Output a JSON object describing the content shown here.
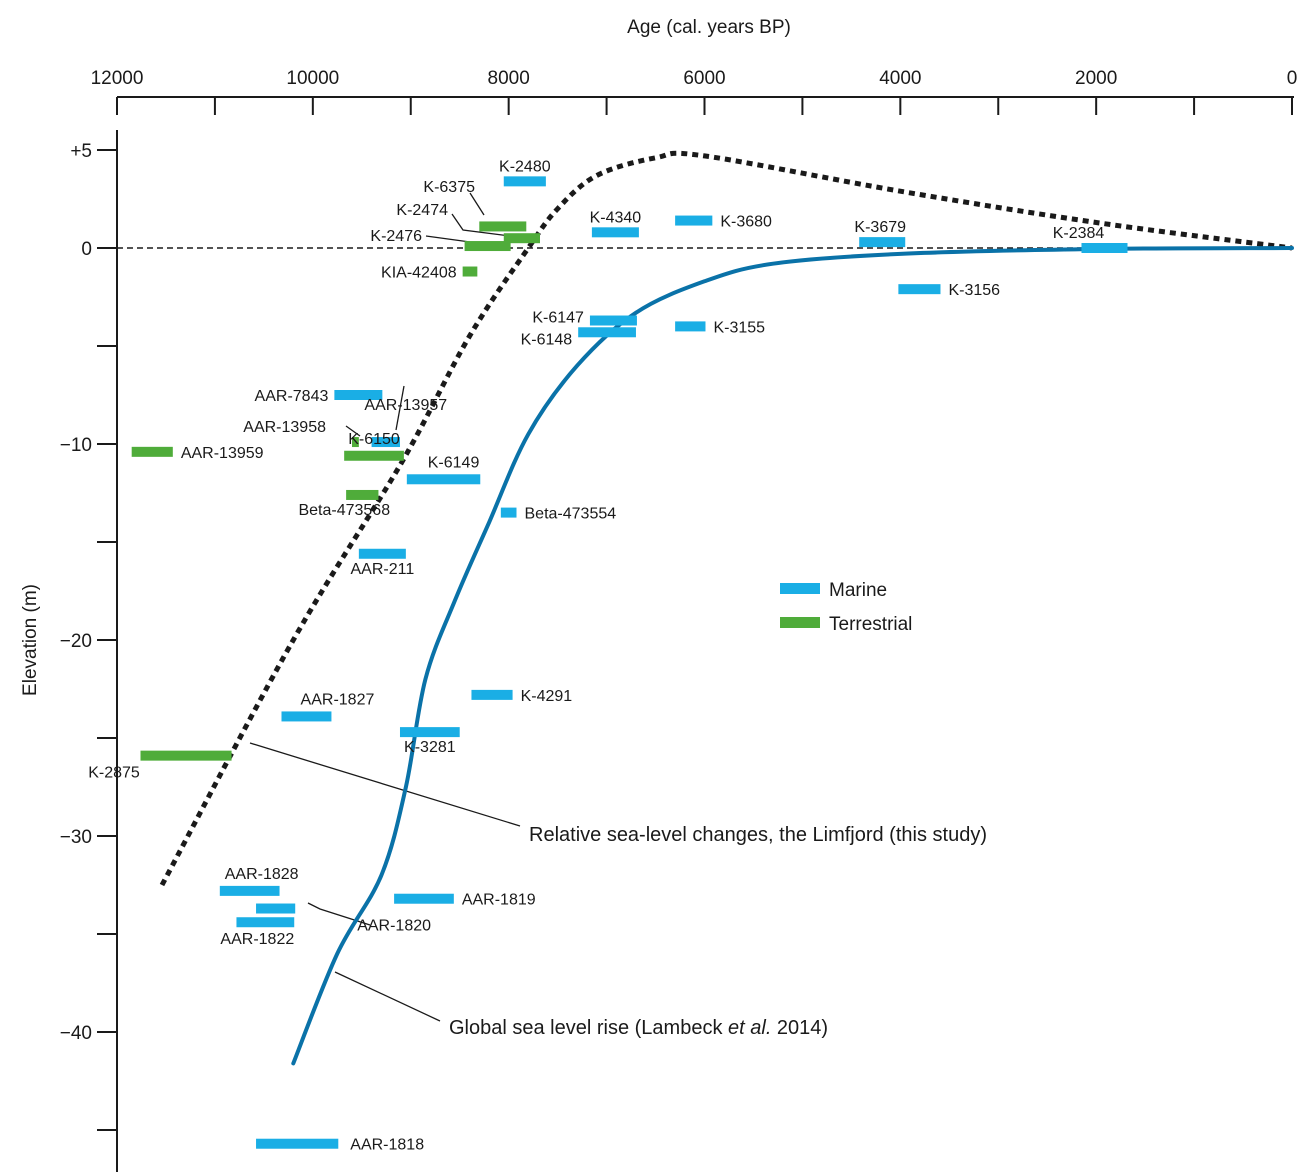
{
  "chart_data": {
    "type": "scatter",
    "title": "",
    "xlabel": "Age (cal. years BP)",
    "ylabel": "Elevation (m)",
    "x_reversed": true,
    "xlim": [
      12000,
      0
    ],
    "ylim": [
      -47,
      6
    ],
    "x_ticks": [
      {
        "value": 12000,
        "label": "12000"
      },
      {
        "value": 10000,
        "label": "10000"
      },
      {
        "value": 8000,
        "label": "8000"
      },
      {
        "value": 6000,
        "label": "6000"
      },
      {
        "value": 4000,
        "label": "4000"
      },
      {
        "value": 2000,
        "label": "2000"
      },
      {
        "value": 0,
        "label": "0"
      }
    ],
    "x_minor_ticks": [
      11000,
      9000,
      7000,
      5000,
      3000,
      1000
    ],
    "y_ticks": [
      {
        "value": 5,
        "label": "+5"
      },
      {
        "value": 0,
        "label": "0"
      },
      {
        "value": -10,
        "label": "−10"
      },
      {
        "value": -20,
        "label": "−20"
      },
      {
        "value": -30,
        "label": "−30"
      },
      {
        "value": -40,
        "label": "−40"
      }
    ],
    "y_minor_ticks": [
      -5,
      -15,
      -25,
      -35,
      -45
    ],
    "legend": [
      {
        "name": "Marine",
        "color": "#1aaee5"
      },
      {
        "name": "Terrestrial",
        "color": "#4fac3a"
      }
    ],
    "samples": [
      {
        "id": "K-2480",
        "type": "Marine",
        "x_from": 8050,
        "x_to": 7620,
        "y": 3.4
      },
      {
        "id": "K-6375",
        "type": "Terrestrial",
        "x_from": 8300,
        "x_to": 7820,
        "y": 1.1
      },
      {
        "id": "K-2474",
        "type": "Terrestrial",
        "x_from": 8050,
        "x_to": 7680,
        "y": 0.5
      },
      {
        "id": "K-2476",
        "type": "Terrestrial",
        "x_from": 8450,
        "x_to": 7980,
        "y": 0.1
      },
      {
        "id": "KIA-42408",
        "type": "Terrestrial",
        "x_from": 8470,
        "x_to": 8320,
        "y": -1.2
      },
      {
        "id": "K-4340",
        "type": "Marine",
        "x_from": 7150,
        "x_to": 6670,
        "y": 0.8
      },
      {
        "id": "K-3680",
        "type": "Marine",
        "x_from": 6300,
        "x_to": 5920,
        "y": 1.4
      },
      {
        "id": "K-3679",
        "type": "Marine",
        "x_from": 4420,
        "x_to": 3950,
        "y": 0.3
      },
      {
        "id": "K-2384",
        "type": "Marine",
        "x_from": 2150,
        "x_to": 1680,
        "y": 0.0
      },
      {
        "id": "K-3156",
        "type": "Marine",
        "x_from": 4020,
        "x_to": 3590,
        "y": -2.1
      },
      {
        "id": "K-6147",
        "type": "Marine",
        "x_from": 7170,
        "x_to": 6690,
        "y": -3.7
      },
      {
        "id": "K-6148",
        "type": "Marine",
        "x_from": 7290,
        "x_to": 6700,
        "y": -4.3
      },
      {
        "id": "K-3155",
        "type": "Marine",
        "x_from": 6300,
        "x_to": 5990,
        "y": -4.0
      },
      {
        "id": "AAR-7843",
        "type": "Marine",
        "x_from": 9780,
        "x_to": 9290,
        "y": -7.5
      },
      {
        "id": "AAR-13957",
        "type": "Marine",
        "x_from": 9400,
        "x_to": 9110,
        "y": -9.9
      },
      {
        "id": "AAR-13958",
        "type": "Terrestrial",
        "x_from": 9600,
        "x_to": 9530,
        "y": -9.9
      },
      {
        "id": "AAR-13959",
        "type": "Terrestrial",
        "x_from": 11850,
        "x_to": 11430,
        "y": -10.4
      },
      {
        "id": "K-6150",
        "type": "Terrestrial",
        "x_from": 9680,
        "x_to": 9070,
        "y": -10.6
      },
      {
        "id": "K-6149",
        "type": "Marine",
        "x_from": 9040,
        "x_to": 8290,
        "y": -11.8
      },
      {
        "id": "Beta-473568",
        "type": "Terrestrial",
        "x_from": 9660,
        "x_to": 9330,
        "y": -12.6
      },
      {
        "id": "Beta-473554",
        "type": "Marine",
        "x_from": 8080,
        "x_to": 7920,
        "y": -13.5
      },
      {
        "id": "AAR-211",
        "type": "Marine",
        "x_from": 9530,
        "x_to": 9050,
        "y": -15.6
      },
      {
        "id": "K-4291",
        "type": "Marine",
        "x_from": 8380,
        "x_to": 7960,
        "y": -22.8
      },
      {
        "id": "AAR-1827",
        "type": "Marine",
        "x_from": 10320,
        "x_to": 9810,
        "y": -23.9
      },
      {
        "id": "K-3281",
        "type": "Marine",
        "x_from": 9110,
        "x_to": 8500,
        "y": -24.7
      },
      {
        "id": "K-2875",
        "type": "Terrestrial",
        "x_from": 11760,
        "x_to": 10830,
        "y": -25.9
      },
      {
        "id": "AAR-1828",
        "type": "Marine",
        "x_from": 10950,
        "x_to": 10340,
        "y": -32.8
      },
      {
        "id": "AAR-1819",
        "type": "Marine",
        "x_from": 9170,
        "x_to": 8560,
        "y": -33.2
      },
      {
        "id": "AAR-1820",
        "type": "Marine",
        "x_from": 10580,
        "x_to": 10180,
        "y": -33.7
      },
      {
        "id": "AAR-1822",
        "type": "Marine",
        "x_from": 10780,
        "x_to": 10190,
        "y": -34.4
      },
      {
        "id": "AAR-1818",
        "type": "Marine",
        "x_from": 10580,
        "x_to": 9740,
        "y": -45.7
      }
    ],
    "series": [
      {
        "name": "Relative sea-level changes, the Limfjord (this study)",
        "style": "dotted",
        "color": "#1a1a1a",
        "points": [
          [
            11540,
            -32.5
          ],
          [
            10200,
            -20
          ],
          [
            9100,
            -11
          ],
          [
            8400,
            -4.5
          ],
          [
            7800,
            0
          ],
          [
            7500,
            2
          ],
          [
            7100,
            3.7
          ],
          [
            6500,
            4.6
          ],
          [
            6000,
            4.7
          ],
          [
            4000,
            2.9
          ],
          [
            2000,
            1.3
          ],
          [
            0,
            0
          ]
        ]
      },
      {
        "name": "Global sea level rise (Lambeck et al. 2014)",
        "style": "solid",
        "color": "#0a72a8",
        "points": [
          [
            10200,
            -41.6
          ],
          [
            9750,
            -36
          ],
          [
            9300,
            -32
          ],
          [
            9050,
            -27.5
          ],
          [
            8850,
            -22
          ],
          [
            8550,
            -18
          ],
          [
            8200,
            -14
          ],
          [
            7800,
            -9.5
          ],
          [
            7300,
            -6
          ],
          [
            6700,
            -3.3
          ],
          [
            6000,
            -1.7
          ],
          [
            5300,
            -0.8
          ],
          [
            4000,
            -0.3
          ],
          [
            2000,
            -0.05
          ],
          [
            0,
            0
          ]
        ]
      }
    ],
    "annotations": [
      {
        "text": "Relative sea-level changes, the Limfjord (this study)",
        "text_pre": "Relative sea-level changes, the Limfjord (this study)",
        "text_italic": "",
        "text_post": ""
      },
      {
        "text": "Global sea level rise (Lambeck et al. 2014)",
        "text_pre": "Global sea level rise (Lambeck ",
        "text_italic": "et al.",
        "text_post": " 2014)"
      }
    ],
    "reference_line": {
      "y": 0,
      "style": "dashed"
    }
  }
}
